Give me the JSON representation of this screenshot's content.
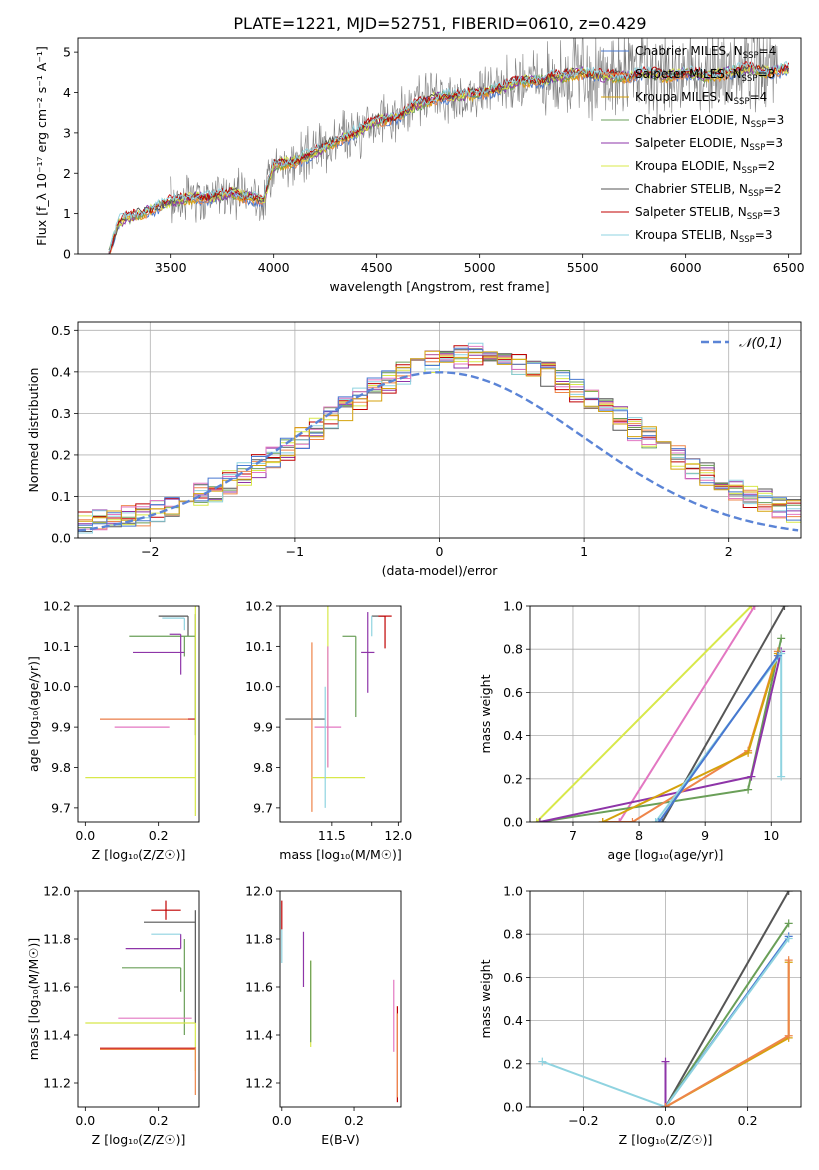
{
  "figure_title": "PLATE=1221, MJD=52751, FIBERID=0610, z=0.429",
  "series_colors": [
    "#4878d0",
    "#ee854a",
    "#d5a20c",
    "#6a9f58",
    "#8e35a8",
    "#d8e84a",
    "#555555",
    "#c00000",
    "#8fd3e0",
    "#e377c2"
  ],
  "chart_data": [
    {
      "type": "line",
      "id": "spectrum",
      "title": "PLATE=1221, MJD=52751, FIBERID=0610, z=0.429",
      "xlabel": "wavelength [Angstrom, rest frame]",
      "ylabel": "Flux [f_λ 10⁻¹⁷ erg cm⁻² s⁻¹ A⁻¹]",
      "xlim": [
        3050,
        6560
      ],
      "ylim": [
        0,
        5.35
      ],
      "xticks": [
        3500,
        4000,
        4500,
        5000,
        5500,
        6000,
        6500
      ],
      "yticks": [
        0,
        1,
        2,
        3,
        4,
        5
      ],
      "legend_position": "upper-right",
      "continuum": {
        "x": [
          3200,
          3250,
          3300,
          3400,
          3500,
          3600,
          3700,
          3800,
          3900,
          3950,
          4000,
          4100,
          4200,
          4300,
          4400,
          4500,
          4600,
          4700,
          4800,
          4900,
          5000,
          5100,
          5200,
          5300,
          5400,
          5500,
          5600,
          5700,
          5800,
          5900,
          6000,
          6100,
          6200,
          6300,
          6400,
          6500
        ],
        "y": [
          0.0,
          0.8,
          0.9,
          1.1,
          1.3,
          1.4,
          1.4,
          1.5,
          1.4,
          1.3,
          2.2,
          2.3,
          2.5,
          2.8,
          3.0,
          3.3,
          3.4,
          3.7,
          3.9,
          3.9,
          4.0,
          4.1,
          4.3,
          4.3,
          4.4,
          4.5,
          4.4,
          4.4,
          4.5,
          4.4,
          4.5,
          4.4,
          4.5,
          4.6,
          4.5,
          4.6
        ]
      },
      "observed_range": [
        3500,
        6450
      ],
      "series": [
        {
          "name": "Chabrier MILES, N_SSP=4",
          "label_main": "Chabrier MILES, N",
          "label_sub": "SSP",
          "label_tail": "=4"
        },
        {
          "name": "Salpeter MILES, N_SSP=3",
          "label_main": "Salpeter MILES, N",
          "label_sub": "SSP",
          "label_tail": "=3"
        },
        {
          "name": "Kroupa MILES, N_SSP=4",
          "label_main": "Kroupa MILES, N",
          "label_sub": "SSP",
          "label_tail": "=4"
        },
        {
          "name": "Chabrier ELODIE, N_SSP=3",
          "label_main": "Chabrier ELODIE, N",
          "label_sub": "SSP",
          "label_tail": "=3"
        },
        {
          "name": "Salpeter ELODIE, N_SSP=3",
          "label_main": "Salpeter ELODIE, N",
          "label_sub": "SSP",
          "label_tail": "=3"
        },
        {
          "name": "Kroupa ELODIE, N_SSP=2",
          "label_main": "Kroupa ELODIE, N",
          "label_sub": "SSP",
          "label_tail": "=2"
        },
        {
          "name": "Chabrier STELIB, N_SSP=2",
          "label_main": "Chabrier STELIB, N",
          "label_sub": "SSP",
          "label_tail": "=2"
        },
        {
          "name": "Salpeter STELIB, N_SSP=3",
          "label_main": "Salpeter STELIB, N",
          "label_sub": "SSP",
          "label_tail": "=3"
        },
        {
          "name": "Kroupa STELIB, N_SSP=3",
          "label_main": "Kroupa STELIB, N",
          "label_sub": "SSP",
          "label_tail": "=3"
        }
      ]
    },
    {
      "type": "bar",
      "id": "residuals",
      "xlabel": "(data-model)/error",
      "ylabel": "Normed distribution",
      "xlim": [
        -2.5,
        2.5
      ],
      "ylim": [
        0,
        0.52
      ],
      "xticks": [
        -2,
        -1,
        0,
        1,
        2
      ],
      "yticks": [
        0.0,
        0.1,
        0.2,
        0.3,
        0.4,
        0.5
      ],
      "bin_width": 0.1,
      "grid": true,
      "legend_position": "upper-right",
      "reference_curve": {
        "name": "𝒩(0,1)",
        "mean": 0,
        "sigma": 1
      }
    },
    {
      "type": "scatter",
      "id": "age-vs-Z",
      "xlabel": "Z [log₁₀(Z/Z☉)]",
      "ylabel": "age  [log₁₀(age/yr)]",
      "xlim": [
        -0.02,
        0.31
      ],
      "ylim": [
        9.665,
        10.2
      ],
      "xticks": [
        0.0,
        0.2
      ],
      "yticks": [
        9.7,
        9.8,
        9.9,
        10.0,
        10.1,
        10.2
      ],
      "points": [
        {
          "x": 0.28,
          "y": 10.175,
          "xerr": [
            0.08,
            0.0
          ],
          "yerr": [
            0.05,
            0.0
          ],
          "color": 6
        },
        {
          "x": 0.27,
          "y": 10.17,
          "xerr": [
            0.06,
            0.0
          ],
          "yerr": [
            0.03,
            0.0
          ],
          "color": 8
        },
        {
          "x": 0.27,
          "y": 10.125,
          "xerr": [
            0.15,
            0.03
          ],
          "yerr": [
            0.05,
            0.0
          ],
          "color": 3
        },
        {
          "x": 0.26,
          "y": 10.13,
          "xerr": [
            0.03,
            0.0
          ],
          "yerr": [
            0.1,
            0.0
          ],
          "color": 4
        },
        {
          "x": 0.21,
          "y": 10.085,
          "xerr": [
            0.08,
            0.06
          ],
          "yerr": [
            0.0,
            0.0
          ],
          "color": 4
        },
        {
          "x": 0.3,
          "y": 10.0,
          "xerr": [
            0.0,
            0.0
          ],
          "yerr": [
            0.12,
            0.18
          ],
          "color": 6
        },
        {
          "x": 0.18,
          "y": 9.92,
          "xerr": [
            0.14,
            0.12
          ],
          "yerr": [
            0.0,
            0.0
          ],
          "color": 7
        },
        {
          "x": 0.18,
          "y": 9.92,
          "xerr": [
            0.14,
            0.1
          ],
          "yerr": [
            0.0,
            0.0
          ],
          "color": 1
        },
        {
          "x": 0.18,
          "y": 9.9,
          "xerr": [
            0.1,
            0.05
          ],
          "yerr": [
            0.0,
            0.0
          ],
          "color": 9
        },
        {
          "x": 0.15,
          "y": 9.775,
          "xerr": [
            0.15,
            0.15
          ],
          "yerr": [
            0.0,
            0.0
          ],
          "color": 5
        },
        {
          "x": 0.3,
          "y": 9.8,
          "xerr": [
            0.0,
            0.0
          ],
          "yerr": [
            0.12,
            0.4
          ],
          "color": 5
        }
      ]
    },
    {
      "type": "scatter",
      "id": "age-vs-mass",
      "xlabel": "mass [log₁₀(M/M☉)]",
      "ylabel": "",
      "xlim": [
        11.11,
        12.02
      ],
      "ylim": [
        9.665,
        10.2
      ],
      "xticks": [
        11.5,
        11.8,
        12.0
      ],
      "xtick_labels": [
        "11.5",
        "",
        "12.0"
      ],
      "yticks": [
        9.7,
        9.8,
        9.9,
        10.0,
        10.1,
        10.2
      ],
      "points": [
        {
          "x": 11.85,
          "y": 10.175,
          "xerr": [
            0.05,
            0.05
          ],
          "yerr": [
            0.0,
            0.0
          ],
          "color": 6
        },
        {
          "x": 11.8,
          "y": 10.175,
          "xerr": [
            0.0,
            0.0
          ],
          "yerr": [
            0.05,
            0.0
          ],
          "color": 8
        },
        {
          "x": 11.9,
          "y": 10.175,
          "xerr": [
            0.05,
            0.05
          ],
          "yerr": [
            0.08,
            0.0
          ],
          "color": 7
        },
        {
          "x": 11.68,
          "y": 10.125,
          "xerr": [
            0.1,
            0.0
          ],
          "yerr": [
            0.2,
            0.0
          ],
          "color": 3
        },
        {
          "x": 11.77,
          "y": 10.085,
          "xerr": [
            0.05,
            0.05
          ],
          "yerr": [
            0.1,
            0.1
          ],
          "color": 4
        },
        {
          "x": 11.47,
          "y": 10.1,
          "xerr": [
            0.0,
            0.0
          ],
          "yerr": [
            0.3,
            0.1
          ],
          "color": 5
        },
        {
          "x": 11.35,
          "y": 9.92,
          "xerr": [
            0.2,
            0.1
          ],
          "yerr": [
            0.0,
            0.0
          ],
          "color": 6
        },
        {
          "x": 11.35,
          "y": 9.92,
          "xerr": [
            0.0,
            0.0
          ],
          "yerr": [
            0.23,
            0.19
          ],
          "color": 1
        },
        {
          "x": 11.47,
          "y": 9.9,
          "xerr": [
            0.1,
            0.1
          ],
          "yerr": [
            0.1,
            0.2
          ],
          "color": 9
        },
        {
          "x": 11.55,
          "y": 9.775,
          "xerr": [
            0.2,
            0.2
          ],
          "yerr": [
            0.0,
            0.0
          ],
          "color": 5
        },
        {
          "x": 11.45,
          "y": 9.85,
          "xerr": [
            0.0,
            0.0
          ],
          "yerr": [
            0.15,
            0.15
          ],
          "color": 8
        }
      ]
    },
    {
      "type": "line",
      "id": "mass-weight-vs-age",
      "xlabel": "age  [log₁₀(age/yr)]",
      "ylabel": "mass weight",
      "xlim": [
        6.35,
        10.45
      ],
      "ylim": [
        0,
        1
      ],
      "xticks": [
        7,
        8,
        9,
        10
      ],
      "yticks": [
        0.0,
        0.2,
        0.4,
        0.6,
        0.8,
        1.0
      ],
      "grid": true,
      "series": [
        {
          "color": 5,
          "x": [
            6.45,
            9.7
          ],
          "y": [
            0.0,
            1.0
          ]
        },
        {
          "color": 9,
          "x": [
            7.7,
            9.75
          ],
          "y": [
            0.0,
            1.0
          ]
        },
        {
          "color": 6,
          "x": [
            8.35,
            10.2
          ],
          "y": [
            0.0,
            1.0
          ]
        },
        {
          "color": 3,
          "x": [
            6.5,
            9.65,
            10.15
          ],
          "y": [
            0.0,
            0.15,
            0.85
          ]
        },
        {
          "color": 4,
          "x": [
            6.5,
            9.7,
            10.15
          ],
          "y": [
            0.0,
            0.21,
            0.79
          ]
        },
        {
          "color": 1,
          "x": [
            7.45,
            7.9,
            9.65,
            10.1
          ],
          "y": [
            0.0,
            0.0,
            0.33,
            0.79
          ]
        },
        {
          "color": 2,
          "x": [
            7.45,
            9.65,
            10.1
          ],
          "y": [
            0.0,
            0.32,
            0.78
          ]
        },
        {
          "color": 8,
          "x": [
            8.25,
            10.15,
            10.15
          ],
          "y": [
            0.0,
            0.78,
            0.21
          ]
        },
        {
          "color": 0,
          "x": [
            8.3,
            10.1
          ],
          "y": [
            0.0,
            0.77
          ]
        }
      ]
    },
    {
      "type": "scatter",
      "id": "mass-vs-Z",
      "xlabel": "Z [log₁₀(Z/Z☉)]",
      "ylabel": "mass [log₁₀(M/M☉)]",
      "xlim": [
        -0.02,
        0.31
      ],
      "ylim": [
        11.1,
        12.0
      ],
      "xticks": [
        0.0,
        0.2
      ],
      "yticks": [
        11.2,
        11.4,
        11.6,
        11.8,
        12.0
      ],
      "points": [
        {
          "x": 0.22,
          "y": 11.92,
          "xerr": [
            0.04,
            0.04
          ],
          "yerr": [
            0.04,
            0.04
          ],
          "color": 7
        },
        {
          "x": 0.24,
          "y": 11.87,
          "xerr": [
            0.08,
            0.06
          ],
          "yerr": [
            0.0,
            0.0
          ],
          "color": 6
        },
        {
          "x": 0.22,
          "y": 11.82,
          "xerr": [
            0.04,
            0.04
          ],
          "yerr": [
            0.0,
            0.0
          ],
          "color": 8
        },
        {
          "x": 0.26,
          "y": 11.76,
          "xerr": [
            0.15,
            0.0
          ],
          "yerr": [
            0.0,
            0.06
          ],
          "color": 4
        },
        {
          "x": 0.26,
          "y": 11.68,
          "xerr": [
            0.16,
            0.0
          ],
          "yerr": [
            0.1,
            0.0
          ],
          "color": 3
        },
        {
          "x": 0.27,
          "y": 11.65,
          "xerr": [
            0.0,
            0.0
          ],
          "yerr": [
            0.25,
            0.15
          ],
          "color": 3
        },
        {
          "x": 0.3,
          "y": 11.7,
          "xerr": [
            0.0,
            0.0
          ],
          "yerr": [
            0.25,
            0.22
          ],
          "color": 6
        },
        {
          "x": 0.19,
          "y": 11.47,
          "xerr": [
            0.1,
            0.1
          ],
          "yerr": [
            0.0,
            0.0
          ],
          "color": 9
        },
        {
          "x": 0.15,
          "y": 11.45,
          "xerr": [
            0.15,
            0.15
          ],
          "yerr": [
            0.0,
            0.0
          ],
          "color": 5
        },
        {
          "x": 0.3,
          "y": 11.45,
          "xerr": [
            0.0,
            0.0
          ],
          "yerr": [
            0.2,
            0.0
          ],
          "color": 5
        },
        {
          "x": 0.17,
          "y": 11.345,
          "xerr": [
            0.13,
            0.13
          ],
          "yerr": [
            0.0,
            0.0
          ],
          "color": 7
        },
        {
          "x": 0.17,
          "y": 11.34,
          "xerr": [
            0.13,
            0.13
          ],
          "yerr": [
            0.0,
            0.0
          ],
          "color": 1
        },
        {
          "x": 0.3,
          "y": 11.35,
          "xerr": [
            0.0,
            0.0
          ],
          "yerr": [
            0.2,
            0.0
          ],
          "color": 1
        }
      ]
    },
    {
      "type": "scatter",
      "id": "mass-vs-EBV",
      "xlabel": "E(B-V)",
      "ylabel": "",
      "xlim": [
        -0.005,
        0.33
      ],
      "ylim": [
        11.1,
        12.0
      ],
      "xticks": [
        0.0,
        0.2
      ],
      "yticks": [
        11.2,
        11.4,
        11.6,
        11.8,
        12.0
      ],
      "points": [
        {
          "x": 0.0,
          "y": 11.88,
          "xerr": [
            0.0,
            0.0
          ],
          "yerr": [
            0.04,
            0.08
          ],
          "color": 7
        },
        {
          "x": 0.0,
          "y": 11.8,
          "xerr": [
            0.0,
            0.0
          ],
          "yerr": [
            0.1,
            0.04
          ],
          "color": 8
        },
        {
          "x": 0.06,
          "y": 11.7,
          "xerr": [
            0.0,
            0.0
          ],
          "yerr": [
            0.1,
            0.13
          ],
          "color": 4
        },
        {
          "x": 0.08,
          "y": 11.53,
          "xerr": [
            0.0,
            0.0
          ],
          "yerr": [
            0.18,
            0.18
          ],
          "color": 5
        },
        {
          "x": 0.08,
          "y": 11.53,
          "xerr": [
            0.0,
            0.0
          ],
          "yerr": [
            0.16,
            0.18
          ],
          "color": 3
        },
        {
          "x": 0.31,
          "y": 11.48,
          "xerr": [
            0.0,
            0.0
          ],
          "yerr": [
            0.15,
            0.15
          ],
          "color": 9
        },
        {
          "x": 0.32,
          "y": 11.32,
          "xerr": [
            0.0,
            0.0
          ],
          "yerr": [
            0.2,
            0.2
          ],
          "color": 7
        },
        {
          "x": 0.32,
          "y": 11.32,
          "xerr": [
            0.0,
            0.0
          ],
          "yerr": [
            0.18,
            0.17
          ],
          "color": 1
        }
      ]
    },
    {
      "type": "line",
      "id": "mass-weight-vs-Z",
      "xlabel": "Z [log₁₀(Z/Z☉)]",
      "ylabel": "mass weight",
      "xlim": [
        -0.33,
        0.33
      ],
      "ylim": [
        0,
        1
      ],
      "xticks": [
        -0.2,
        0.0,
        0.2
      ],
      "yticks": [
        0.0,
        0.2,
        0.4,
        0.6,
        0.8,
        1.0
      ],
      "grid": true,
      "series": [
        {
          "color": 6,
          "x": [
            0.0,
            0.3
          ],
          "y": [
            0.0,
            1.0
          ]
        },
        {
          "color": 3,
          "x": [
            0.0,
            0.3
          ],
          "y": [
            0.0,
            0.85
          ]
        },
        {
          "color": 0,
          "x": [
            0.0,
            0.3
          ],
          "y": [
            0.0,
            0.79
          ]
        },
        {
          "color": 8,
          "x": [
            -0.3,
            0.0,
            0.3
          ],
          "y": [
            0.21,
            0.0,
            0.78
          ]
        },
        {
          "color": 4,
          "x": [
            0.0,
            0.0
          ],
          "y": [
            0.0,
            0.21
          ]
        },
        {
          "color": 2,
          "x": [
            0.0,
            0.3,
            0.3
          ],
          "y": [
            0.0,
            0.32,
            0.67
          ]
        },
        {
          "color": 1,
          "x": [
            0.0,
            0.3,
            0.3
          ],
          "y": [
            0.0,
            0.33,
            0.68
          ]
        }
      ]
    }
  ]
}
